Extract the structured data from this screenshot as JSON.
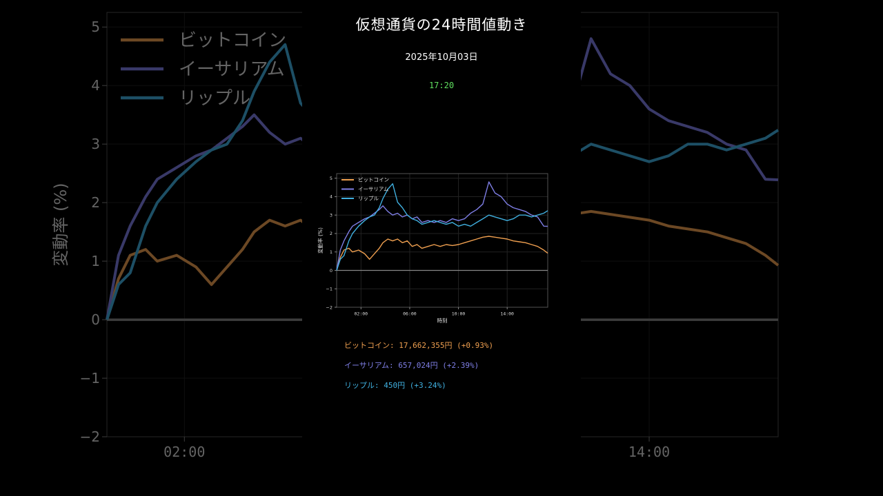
{
  "header": {
    "title": "仮想通貨の24時間値動き",
    "date": "2025年10月03日",
    "time": "17:20"
  },
  "colors": {
    "background": "#000000",
    "bitcoin": "#f0a050",
    "ethereum": "#7f7fe6",
    "ripple": "#40b0e0",
    "time": "#60e060",
    "zero_line": "#888888"
  },
  "prices": {
    "btc": "ビットコイン: 17,662,355円 (+0.93%)",
    "eth": "イーサリアム: 657,024円 (+2.39%)",
    "xrp": "リップル: 450円 (+3.24%)"
  },
  "chart_data": {
    "type": "line",
    "xlabel": "時刻",
    "ylabel": "変動率 (%)",
    "x_ticks": [
      "02:00",
      "06:00",
      "10:00",
      "14:00"
    ],
    "x_tick_hours": [
      2,
      6,
      10,
      14
    ],
    "xlim_hours": [
      0,
      17.33
    ],
    "ylim": [
      -2,
      5.25
    ],
    "y_ticks": [
      "5",
      "4",
      "3",
      "2",
      "1",
      "0",
      "−1",
      "−2"
    ],
    "y_tick_values": [
      5,
      4,
      3,
      2,
      1,
      0,
      -1,
      -2
    ],
    "grid": true,
    "legend": "top-left",
    "series": [
      {
        "name": "ビットコイン",
        "key": "bitcoin",
        "x": [
          0,
          0.3,
          0.6,
          1,
          1.3,
          1.8,
          2.3,
          2.7,
          3.1,
          3.5,
          3.8,
          4.2,
          4.6,
          5,
          5.4,
          5.8,
          6.2,
          6.6,
          7,
          7.5,
          8,
          8.5,
          9,
          9.5,
          10,
          10.5,
          11,
          11.5,
          12,
          12.5,
          13,
          13.5,
          14,
          14.5,
          15,
          15.5,
          16,
          16.5,
          17,
          17.33
        ],
        "values": [
          0,
          0.7,
          1.1,
          1.2,
          1.0,
          1.1,
          0.9,
          0.6,
          0.9,
          1.2,
          1.5,
          1.7,
          1.6,
          1.7,
          1.5,
          1.6,
          1.3,
          1.4,
          1.2,
          1.3,
          1.4,
          1.3,
          1.4,
          1.35,
          1.4,
          1.5,
          1.6,
          1.7,
          1.8,
          1.85,
          1.8,
          1.75,
          1.7,
          1.6,
          1.55,
          1.5,
          1.4,
          1.3,
          1.1,
          0.93
        ]
      },
      {
        "name": "イーサリアム",
        "key": "ethereum",
        "x": [
          0,
          0.3,
          0.6,
          1,
          1.3,
          1.8,
          2.3,
          2.7,
          3.1,
          3.5,
          3.8,
          4.2,
          4.6,
          5,
          5.4,
          5.8,
          6.2,
          6.6,
          7,
          7.5,
          8,
          8.5,
          9,
          9.5,
          10,
          10.5,
          11,
          11.5,
          12,
          12.5,
          13,
          13.5,
          14,
          14.5,
          15,
          15.5,
          16,
          16.5,
          17,
          17.33
        ],
        "values": [
          0,
          1.1,
          1.6,
          2.1,
          2.4,
          2.6,
          2.8,
          2.9,
          3.1,
          3.3,
          3.5,
          3.2,
          3.0,
          3.1,
          2.9,
          3.0,
          2.8,
          2.9,
          2.6,
          2.7,
          2.6,
          2.7,
          2.6,
          2.8,
          2.7,
          2.8,
          3.1,
          3.3,
          3.6,
          4.8,
          4.2,
          4.0,
          3.6,
          3.4,
          3.3,
          3.2,
          3.0,
          2.9,
          2.4,
          2.39
        ]
      },
      {
        "name": "リップル",
        "key": "ripple",
        "x": [
          0,
          0.3,
          0.6,
          1,
          1.3,
          1.8,
          2.3,
          2.7,
          3.1,
          3.5,
          3.8,
          4.2,
          4.6,
          5,
          5.4,
          5.8,
          6.2,
          6.6,
          7,
          7.5,
          8,
          8.5,
          9,
          9.5,
          10,
          10.5,
          11,
          11.5,
          12,
          12.5,
          13,
          13.5,
          14,
          14.5,
          15,
          15.5,
          16,
          16.5,
          17,
          17.33
        ],
        "values": [
          0,
          0.6,
          0.8,
          1.6,
          2.0,
          2.4,
          2.7,
          2.9,
          3.0,
          3.4,
          3.9,
          4.4,
          4.7,
          3.7,
          3.4,
          3.0,
          2.8,
          2.7,
          2.5,
          2.6,
          2.7,
          2.6,
          2.5,
          2.6,
          2.4,
          2.5,
          2.4,
          2.6,
          2.8,
          3.0,
          2.9,
          2.8,
          2.7,
          2.8,
          3.0,
          3.0,
          2.9,
          3.0,
          3.1,
          3.24
        ]
      }
    ]
  }
}
